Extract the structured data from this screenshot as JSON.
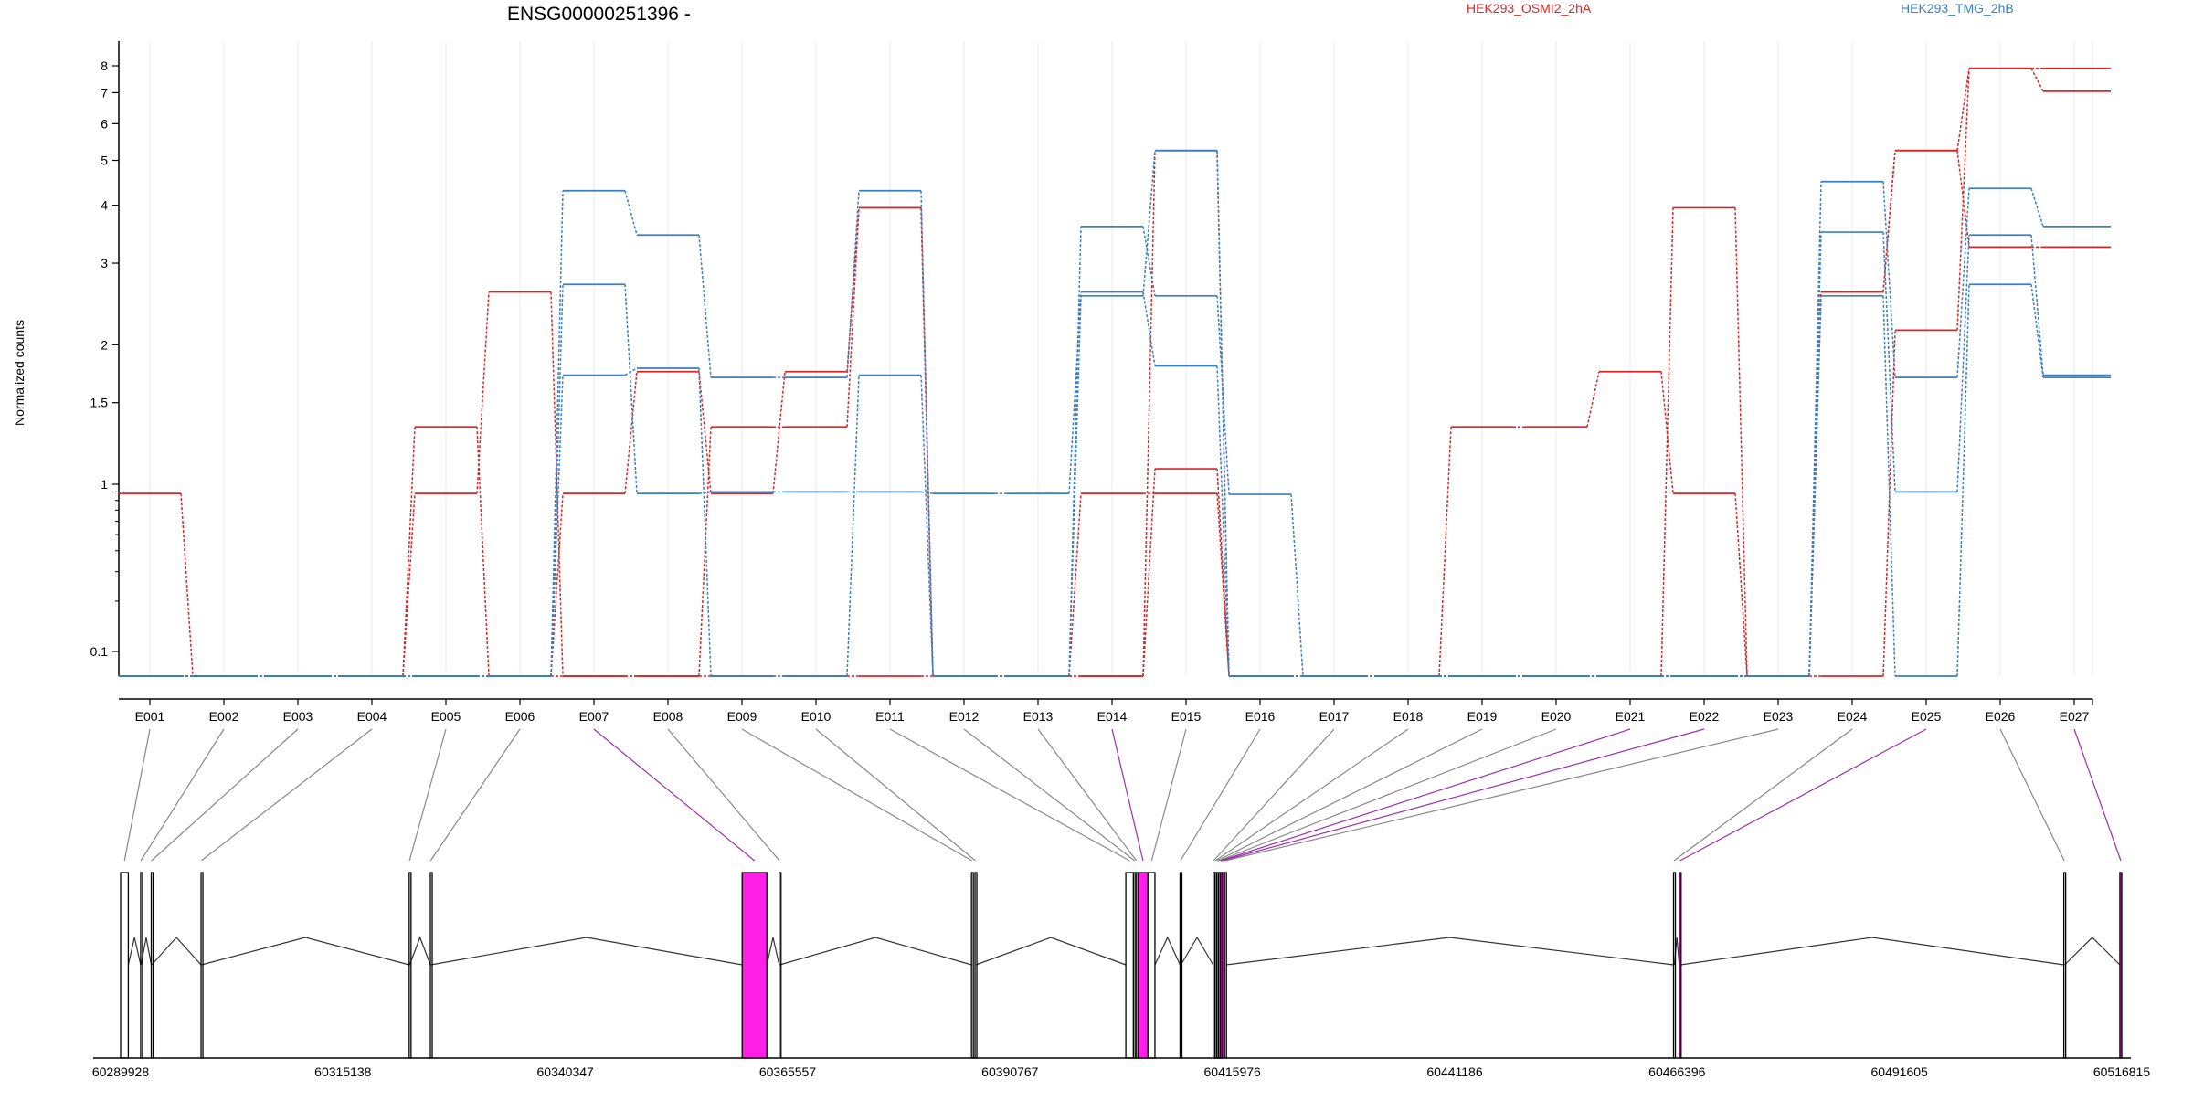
{
  "chart_data": {
    "type": "line",
    "title": "ENSG00000251396 -",
    "ylabel": "Normalized counts",
    "y_scale": "log",
    "y_ticks": [
      "0.1",
      "1",
      "1.5",
      "2",
      "3",
      "4",
      "5",
      "6",
      "7",
      "8"
    ],
    "y_tick_values": [
      0.1,
      1,
      1.5,
      2,
      3,
      4,
      5,
      6,
      7,
      8
    ],
    "categories": [
      "E001",
      "E002",
      "E003",
      "E004",
      "E005",
      "E006",
      "E007",
      "E008",
      "E009",
      "E010",
      "E011",
      "E012",
      "E013",
      "E014",
      "E015",
      "E016",
      "E017",
      "E018",
      "E019",
      "E020",
      "E021",
      "E022",
      "E023",
      "E024",
      "E025",
      "E026",
      "E027"
    ],
    "legend": [
      {
        "name": "HEK293_OSMI2_2hA",
        "color": "#d62728"
      },
      {
        "name": "HEK293_TMG_2hB",
        "color": "#3a7fc0"
      }
    ],
    "series": [
      {
        "group": "HEK293_OSMI2_2hA",
        "color": "#d62728",
        "values": [
          0.88,
          0.055,
          0.055,
          0.055,
          0.88,
          2.6,
          0.055,
          0.055,
          1.33,
          1.33,
          3.95,
          0.055,
          0.055,
          0.055,
          5.25,
          0.055,
          0.055,
          0.055,
          0.055,
          0.055,
          0.055,
          0.055,
          0.055,
          2.6,
          5.25,
          7.9,
          7.9
        ]
      },
      {
        "group": "HEK293_OSMI2_2hA",
        "color": "#d62728",
        "values": [
          0.055,
          0.055,
          0.055,
          0.055,
          1.33,
          0.055,
          0.88,
          1.75,
          0.88,
          1.75,
          3.95,
          0.055,
          0.055,
          0.88,
          0.88,
          0.055,
          0.055,
          0.055,
          1.33,
          1.33,
          1.75,
          0.88,
          0.055,
          0.055,
          2.15,
          7.9,
          7.05
        ]
      },
      {
        "group": "HEK293_OSMI2_2hA",
        "color": "#d62728",
        "values": [
          0.055,
          0.055,
          0.055,
          0.055,
          0.055,
          0.055,
          0.055,
          0.055,
          0.055,
          0.055,
          0.055,
          0.055,
          0.055,
          0.055,
          1.08,
          0.055,
          0.055,
          0.055,
          0.055,
          0.055,
          0.055,
          3.95,
          0.055,
          2.6,
          5.25,
          3.25,
          3.25
        ]
      },
      {
        "group": "HEK293_TMG_2hB",
        "color": "#3a7fc0",
        "values": [
          0.055,
          0.055,
          0.055,
          0.055,
          0.055,
          0.055,
          4.3,
          3.45,
          1.7,
          1.7,
          4.3,
          0.055,
          0.055,
          3.6,
          2.55,
          0.87,
          0.055,
          0.055,
          0.055,
          0.055,
          0.055,
          0.055,
          0.055,
          4.5,
          1.7,
          4.35,
          3.6
        ]
      },
      {
        "group": "HEK293_TMG_2hB",
        "color": "#3a7fc0",
        "values": [
          0.055,
          0.055,
          0.055,
          0.055,
          0.055,
          0.055,
          2.7,
          0.88,
          0.9,
          0.9,
          0.9,
          0.88,
          0.88,
          2.6,
          1.8,
          0.055,
          0.055,
          0.055,
          0.055,
          0.055,
          0.055,
          0.055,
          0.055,
          3.5,
          0.9,
          3.45,
          1.72
        ]
      },
      {
        "group": "HEK293_TMG_2hB",
        "color": "#3a7fc0",
        "values": [
          0.055,
          0.055,
          0.055,
          0.055,
          0.055,
          0.055,
          1.72,
          1.78,
          0.055,
          0.055,
          1.72,
          0.055,
          0.055,
          2.55,
          5.25,
          0.055,
          0.055,
          0.055,
          0.055,
          0.055,
          0.055,
          0.055,
          0.055,
          2.55,
          0.055,
          2.7,
          1.7
        ]
      }
    ],
    "genome": {
      "start": 60289928,
      "end": 60516815,
      "tick_labels": [
        "60289928",
        "60315138",
        "60340347",
        "60365557",
        "60390767",
        "60415976",
        "60441186",
        "60466396",
        "60491605",
        "60516815"
      ],
      "highlight_color": "#ff1de8",
      "exons": [
        {
          "id": "E001",
          "start": 60289928,
          "end": 60290800,
          "highlight": false
        },
        {
          "id": "E002",
          "start": 60292200,
          "end": 60292250,
          "highlight": false
        },
        {
          "id": "E003",
          "start": 60293400,
          "end": 60293450,
          "highlight": false
        },
        {
          "id": "E004",
          "start": 60299050,
          "end": 60299100,
          "highlight": false
        },
        {
          "id": "E005",
          "start": 60322650,
          "end": 60322700,
          "highlight": false
        },
        {
          "id": "E006",
          "start": 60325050,
          "end": 60325100,
          "highlight": false
        },
        {
          "id": "E007",
          "start": 60360400,
          "end": 60363200,
          "highlight": true
        },
        {
          "id": "E008",
          "start": 60364600,
          "end": 60364650,
          "highlight": false
        },
        {
          "id": "E009",
          "start": 60386400,
          "end": 60386500,
          "highlight": false
        },
        {
          "id": "E010",
          "start": 60386800,
          "end": 60386900,
          "highlight": false
        },
        {
          "id": "E011",
          "start": 60403900,
          "end": 60404750,
          "highlight": false
        },
        {
          "id": "E012",
          "start": 60404800,
          "end": 60405000,
          "highlight": false
        },
        {
          "id": "E013",
          "start": 60405050,
          "end": 60405150,
          "highlight": false
        },
        {
          "id": "E014",
          "start": 60405300,
          "end": 60406400,
          "highlight": true
        },
        {
          "id": "E015",
          "start": 60406450,
          "end": 60407200,
          "highlight": false
        },
        {
          "id": "E016",
          "start": 60410050,
          "end": 60410150,
          "highlight": false
        },
        {
          "id": "E017",
          "start": 60413800,
          "end": 60413900,
          "highlight": false
        },
        {
          "id": "E018",
          "start": 60414000,
          "end": 60414100,
          "highlight": false
        },
        {
          "id": "E019",
          "start": 60414200,
          "end": 60414300,
          "highlight": false
        },
        {
          "id": "E020",
          "start": 60414400,
          "end": 60414500,
          "highlight": false
        },
        {
          "id": "E021",
          "start": 60414600,
          "end": 60414700,
          "highlight": true
        },
        {
          "id": "E022",
          "start": 60414800,
          "end": 60414900,
          "highlight": true
        },
        {
          "id": "E023",
          "start": 60415100,
          "end": 60415250,
          "highlight": false
        },
        {
          "id": "E024",
          "start": 60466000,
          "end": 60466100,
          "highlight": false
        },
        {
          "id": "E025",
          "start": 60466650,
          "end": 60466800,
          "highlight": true
        },
        {
          "id": "E026",
          "start": 60510250,
          "end": 60510350,
          "highlight": false
        },
        {
          "id": "E027",
          "start": 60516600,
          "end": 60516815,
          "highlight": true
        }
      ]
    }
  }
}
